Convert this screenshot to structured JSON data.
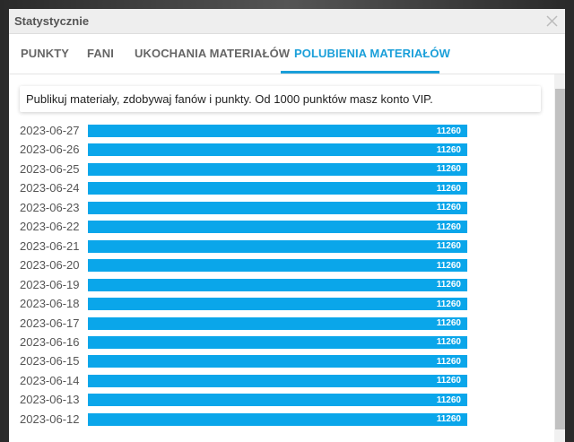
{
  "title": "Statystycznie",
  "tabs": [
    "PUNKTY",
    "FANI",
    "UKOCHANIA MATERIAŁÓW",
    "POLUBIENIA MATERIAŁÓW"
  ],
  "active_tab": 3,
  "info": "Publikuj materiały, zdobywaj fanów i punkty. Od 1000 punktów masz konto VIP.",
  "chart_data": {
    "type": "bar",
    "orientation": "horizontal",
    "color": "#0aa6ea",
    "categories": [
      "2023-06-27",
      "2023-06-26",
      "2023-06-25",
      "2023-06-24",
      "2023-06-23",
      "2023-06-22",
      "2023-06-21",
      "2023-06-20",
      "2023-06-19",
      "2023-06-18",
      "2023-06-17",
      "2023-06-16",
      "2023-06-15",
      "2023-06-14",
      "2023-06-13",
      "2023-06-12"
    ],
    "values": [
      11260,
      11260,
      11260,
      11260,
      11260,
      11260,
      11260,
      11260,
      11260,
      11260,
      11260,
      11260,
      11260,
      11260,
      11260,
      11260
    ]
  }
}
